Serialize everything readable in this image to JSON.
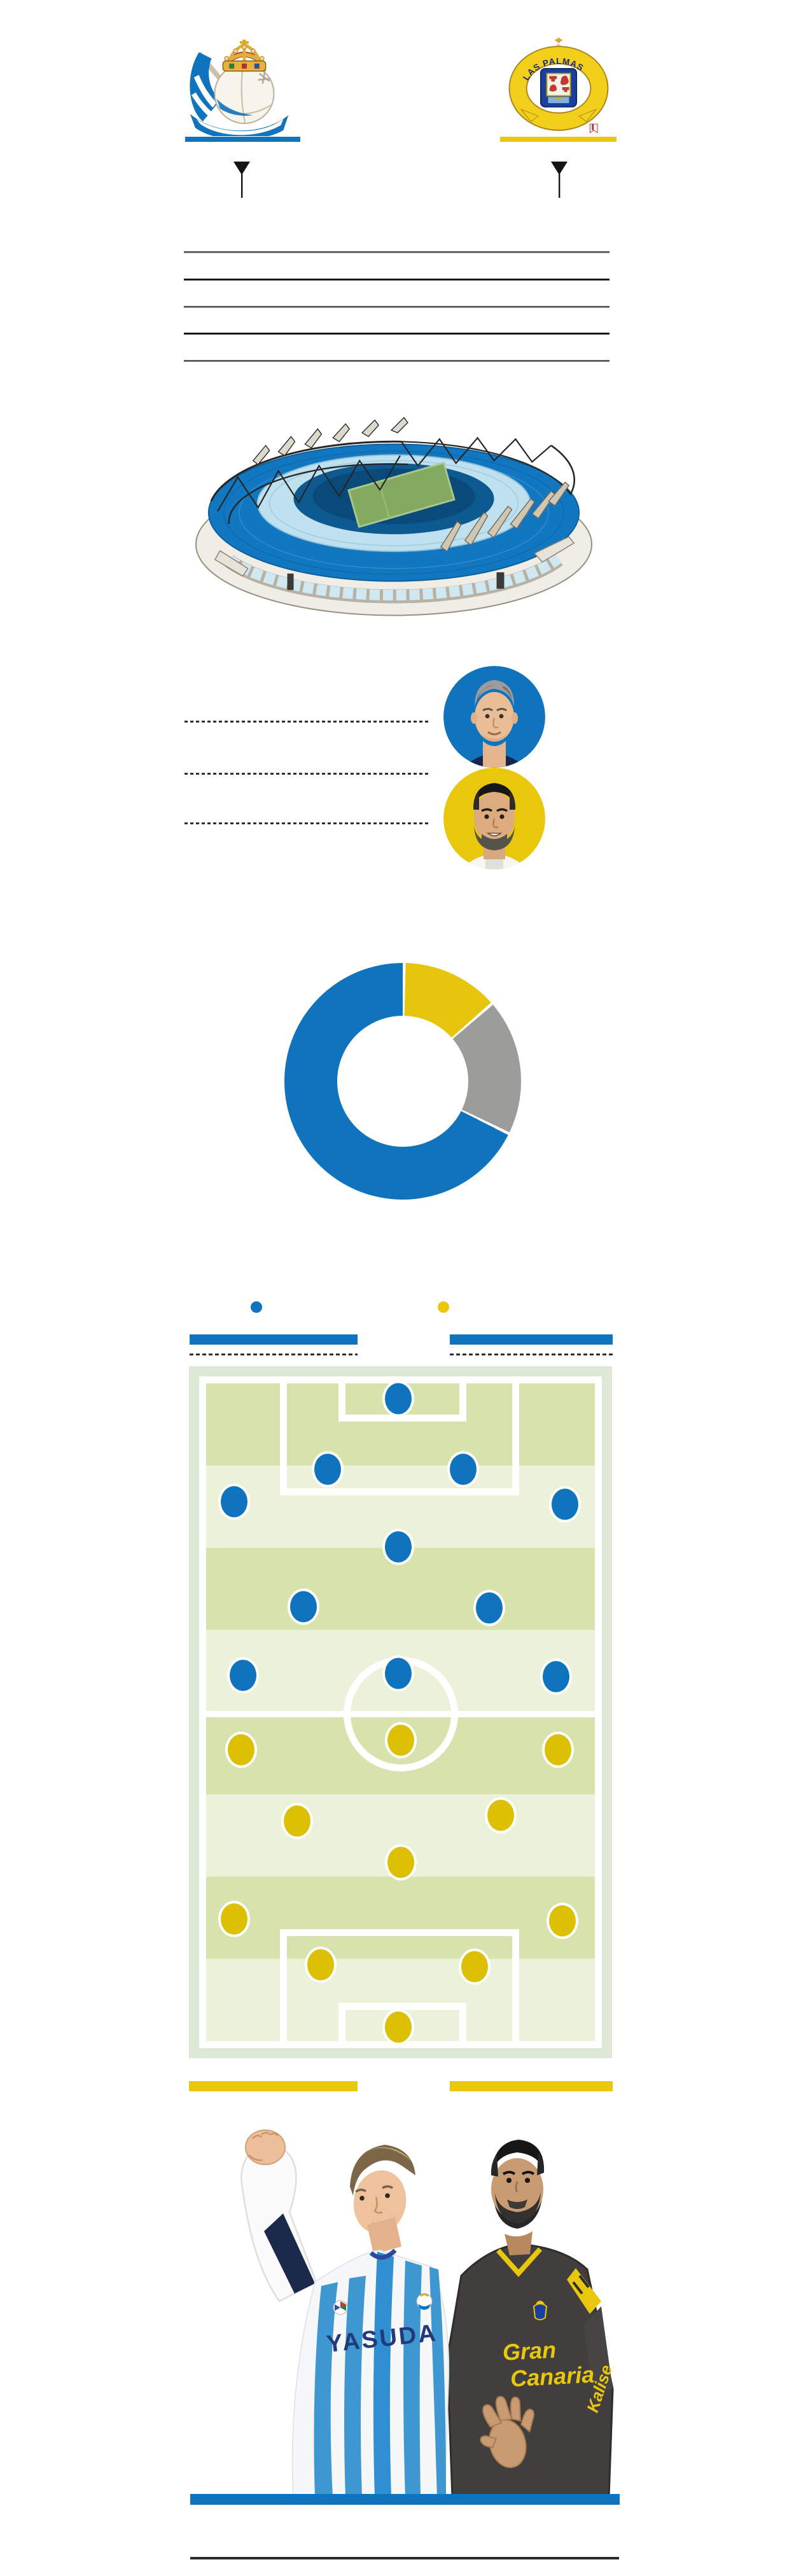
{
  "colors": {
    "home": "#0f73bd",
    "away": "#e9c70d",
    "away_dot": "#ddbf04",
    "draw_gray": "#9c9c9b",
    "pitch_dark_stripe": "#d8e2ac",
    "pitch_light_stripe": "#ecf1d9",
    "pitch_frame": "#dde9d6"
  },
  "teams": {
    "home": {
      "crest_icon": "real-sociedad-crest",
      "accent": "#0f73bd"
    },
    "away": {
      "crest_icon": "las-palmas-crest",
      "accent": "#e9c70d",
      "crest_text": "LAS PALMAS"
    }
  },
  "chart_data": {
    "name": "head-to-head-donut",
    "type": "pie",
    "donut": true,
    "inner_radius_ratio": 0.55,
    "start_angle_deg": 0,
    "clockwise": true,
    "labels_visible": false,
    "gap_percent": 0.4,
    "slices": [
      {
        "color": "#e6c50c",
        "percent": 13.0
      },
      {
        "color": "#9c9c9b",
        "percent": 18.3
      },
      {
        "color": "#0f73bd",
        "percent": 67.5
      }
    ]
  },
  "lineups": {
    "legend_dots": [
      {
        "color": "#0f73bd"
      },
      {
        "color": "#e9c70d"
      }
    ],
    "home": {
      "color": "#0f73bd",
      "positions_pct": [
        [
          49.5,
          2.3
        ],
        [
          31.2,
          13.1
        ],
        [
          66.2,
          13.1
        ],
        [
          7.2,
          18.0
        ],
        [
          92.3,
          18.4
        ],
        [
          49.5,
          24.9
        ],
        [
          25.0,
          33.9
        ],
        [
          72.9,
          34.1
        ],
        [
          9.5,
          44.4
        ],
        [
          49.5,
          44.1
        ],
        [
          90.0,
          44.6
        ]
      ]
    },
    "away": {
      "color": "#ddbf04",
      "positions_pct": [
        [
          9.0,
          55.7
        ],
        [
          50.0,
          54.3
        ],
        [
          90.5,
          55.7
        ],
        [
          23.4,
          66.5
        ],
        [
          75.7,
          65.7
        ],
        [
          50.0,
          72.8
        ],
        [
          7.2,
          81.4
        ],
        [
          91.7,
          81.7
        ],
        [
          29.4,
          88.4
        ],
        [
          69.0,
          88.7
        ],
        [
          49.5,
          97.9
        ]
      ]
    }
  },
  "photo": {
    "left_shirt_sponsor": "YASUDA",
    "right_chest_line1": "Gran",
    "right_chest_line2": "Canaria",
    "right_sleeve_sponsor": "Kalise"
  }
}
